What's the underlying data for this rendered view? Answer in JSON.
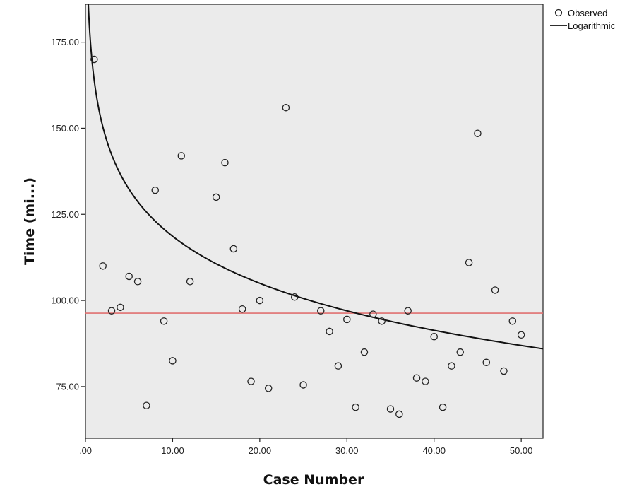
{
  "chart_data": {
    "type": "scatter",
    "xlabel": "Case Number",
    "ylabel": "Time (mi...)",
    "xlim": [
      0,
      52.5
    ],
    "ylim": [
      60,
      186
    ],
    "x_ticks": [
      {
        "value": 0,
        "label": ".00"
      },
      {
        "value": 10,
        "label": "10.00"
      },
      {
        "value": 20,
        "label": "20.00"
      },
      {
        "value": 30,
        "label": "30.00"
      },
      {
        "value": 40,
        "label": "40.00"
      },
      {
        "value": 50,
        "label": "50.00"
      }
    ],
    "y_ticks": [
      {
        "value": 75,
        "label": "75.00"
      },
      {
        "value": 100,
        "label": "100.00"
      },
      {
        "value": 125,
        "label": "125.00"
      },
      {
        "value": 150,
        "label": "150.00"
      },
      {
        "value": 175,
        "label": "175.00"
      }
    ],
    "grid": false,
    "plot_background": "#ebebeb",
    "series": [
      {
        "name": "Observed",
        "kind": "scatter",
        "marker": "open-circle",
        "points": [
          [
            1,
            170
          ],
          [
            2,
            110
          ],
          [
            3,
            97
          ],
          [
            4,
            98
          ],
          [
            5,
            107
          ],
          [
            6,
            105.5
          ],
          [
            7,
            69.5
          ],
          [
            8,
            132
          ],
          [
            9,
            94
          ],
          [
            10,
            82.5
          ],
          [
            11,
            142
          ],
          [
            12,
            105.5
          ],
          [
            15,
            130
          ],
          [
            16,
            140
          ],
          [
            17,
            115
          ],
          [
            18,
            97.5
          ],
          [
            19,
            76.5
          ],
          [
            20,
            100
          ],
          [
            21,
            74.5
          ],
          [
            23,
            156
          ],
          [
            24,
            101
          ],
          [
            25,
            75.5
          ],
          [
            27,
            97
          ],
          [
            28,
            91
          ],
          [
            29,
            81
          ],
          [
            30,
            94.5
          ],
          [
            31,
            69
          ],
          [
            32,
            85
          ],
          [
            33,
            96
          ],
          [
            34,
            94
          ],
          [
            35,
            68.5
          ],
          [
            36,
            67
          ],
          [
            37,
            97
          ],
          [
            38,
            77.5
          ],
          [
            39,
            76.5
          ],
          [
            40,
            89.5
          ],
          [
            41,
            69
          ],
          [
            42,
            81
          ],
          [
            43,
            85
          ],
          [
            44,
            111
          ],
          [
            45,
            148.5
          ],
          [
            46,
            82
          ],
          [
            47,
            103
          ],
          [
            48,
            79.5
          ],
          [
            49,
            94
          ],
          [
            50,
            90
          ]
        ]
      },
      {
        "name": "Logarithmic",
        "kind": "fit-line",
        "color": "#111111",
        "equation": {
          "form": "y = a + b*ln(x)",
          "a": 164,
          "b": -19.7
        },
        "x_range": [
          0.3,
          52.5
        ]
      },
      {
        "kind": "reference-line",
        "color": "#e07070",
        "y": 96.3
      }
    ],
    "legend": {
      "position": "top-right-outside",
      "entries": [
        {
          "label": "Observed",
          "symbol": "open-circle"
        },
        {
          "label": "Logarithmic",
          "symbol": "line"
        }
      ]
    }
  }
}
